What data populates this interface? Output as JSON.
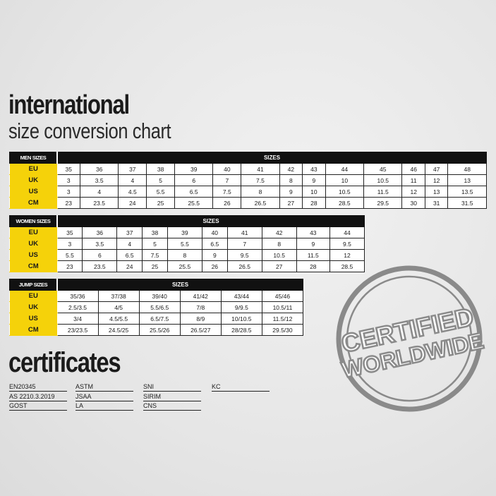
{
  "title": {
    "line1": "international",
    "line2": "size conversion chart"
  },
  "tables": [
    {
      "label": "MEN SIZES",
      "header": "SIZES",
      "rows": [
        {
          "label": "EU",
          "values": [
            "35",
            "36",
            "37",
            "38",
            "39",
            "40",
            "41",
            "42",
            "43",
            "44",
            "45",
            "46",
            "47",
            "48"
          ]
        },
        {
          "label": "UK",
          "values": [
            "3",
            "3.5",
            "4",
            "5",
            "6",
            "7",
            "7.5",
            "8",
            "9",
            "10",
            "10.5",
            "11",
            "12",
            "13"
          ]
        },
        {
          "label": "US",
          "values": [
            "3",
            "4",
            "4.5",
            "5.5",
            "6.5",
            "7.5",
            "8",
            "9",
            "10",
            "10.5",
            "11.5",
            "12",
            "13",
            "13.5"
          ]
        },
        {
          "label": "CM",
          "values": [
            "23",
            "23.5",
            "24",
            "25",
            "25.5",
            "26",
            "26.5",
            "27",
            "28",
            "28.5",
            "29.5",
            "30",
            "31",
            "31.5"
          ]
        }
      ]
    },
    {
      "label": "WOMEN SIZES",
      "header": "SIZES",
      "rows": [
        {
          "label": "EU",
          "values": [
            "35",
            "36",
            "37",
            "38",
            "39",
            "40",
            "41",
            "42",
            "43",
            "44"
          ]
        },
        {
          "label": "UK",
          "values": [
            "3",
            "3.5",
            "4",
            "5",
            "5.5",
            "6.5",
            "7",
            "8",
            "9",
            "9.5"
          ]
        },
        {
          "label": "US",
          "values": [
            "5.5",
            "6",
            "6.5",
            "7.5",
            "8",
            "9",
            "9.5",
            "10.5",
            "11.5",
            "12"
          ]
        },
        {
          "label": "CM",
          "values": [
            "23",
            "23.5",
            "24",
            "25",
            "25.5",
            "26",
            "26.5",
            "27",
            "28",
            "28.5"
          ]
        }
      ]
    },
    {
      "label": "JUMP SIZES",
      "header": "SIZES",
      "rows": [
        {
          "label": "EU",
          "values": [
            "35/36",
            "37/38",
            "39/40",
            "41/42",
            "43/44",
            "45/46"
          ]
        },
        {
          "label": "UK",
          "values": [
            "2.5/3.5",
            "4/5",
            "5.5/6.5",
            "7/8",
            "9/9.5",
            "10.5/11"
          ]
        },
        {
          "label": "US",
          "values": [
            "3/4",
            "4.5/5.5",
            "6.5/7.5",
            "8/9",
            "10/10.5",
            "11.5/12"
          ]
        },
        {
          "label": "CM",
          "values": [
            "23/23.5",
            "24.5/25",
            "25.5/26",
            "26.5/27",
            "28/28.5",
            "29.5/30"
          ]
        }
      ]
    }
  ],
  "certificates": {
    "title": "certificates",
    "columns": [
      [
        "EN20345",
        "AS 2210.3.2019",
        "GOST"
      ],
      [
        "ASTM",
        "JSAA",
        "LA"
      ],
      [
        "SNI",
        "SIRIM",
        "CNS"
      ],
      [
        "KC"
      ]
    ]
  },
  "stamp": {
    "line1": "CERTIFIED",
    "line2": "WORLDWIDE",
    "color": "#8a8a8a"
  },
  "colors": {
    "accent": "#f5d20a",
    "header": "#111111"
  }
}
